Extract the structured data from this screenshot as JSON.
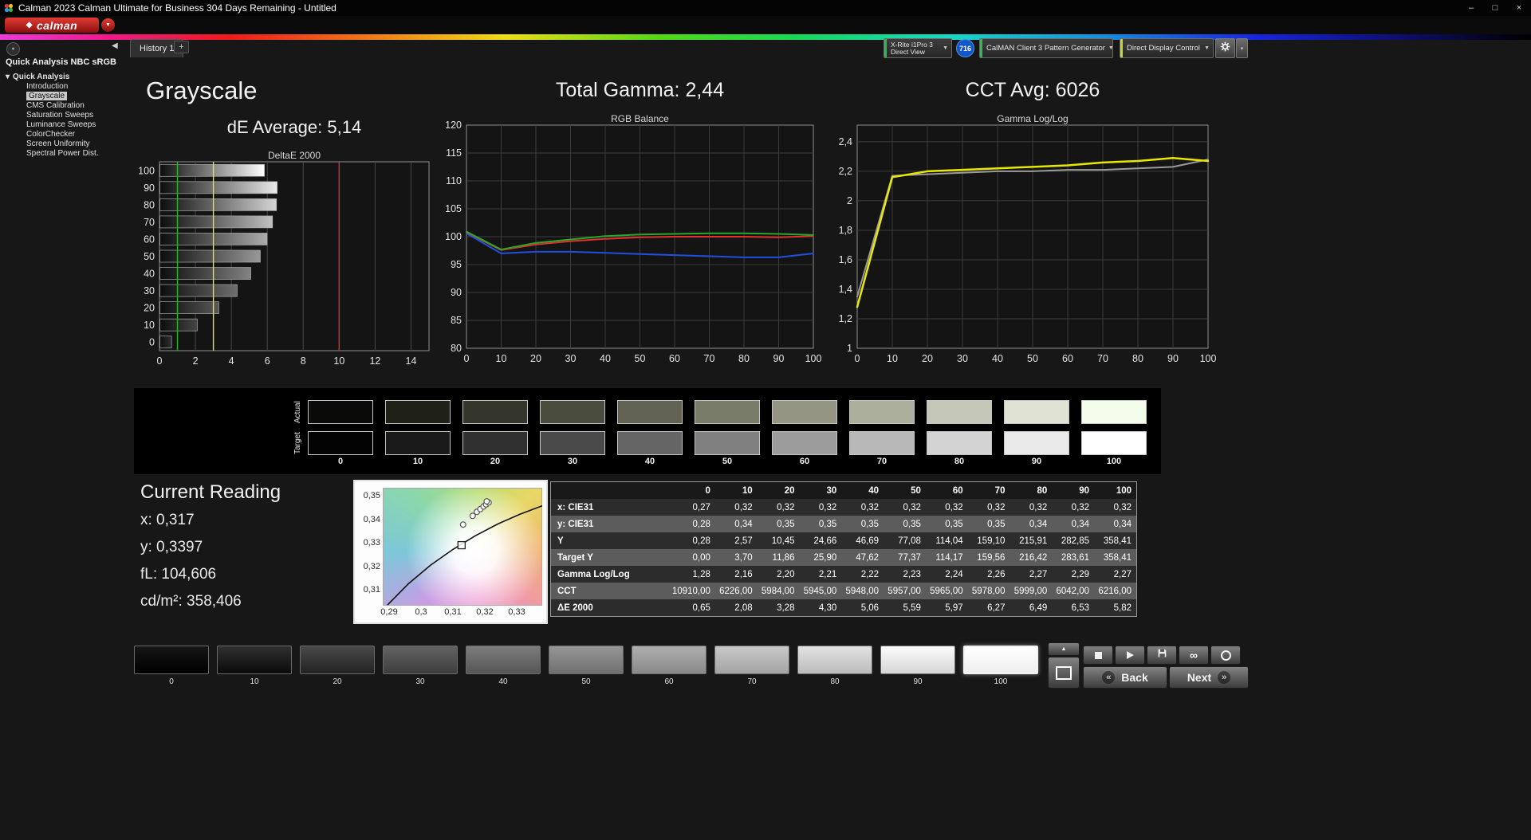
{
  "window": {
    "title": "Calman 2023 Calman Ultimate for Business 304 Days Remaining - Untitled",
    "controls": {
      "minimize": "–",
      "maximize": "□",
      "close": "×"
    }
  },
  "brand": {
    "logo_text": "calman"
  },
  "icons": {
    "dropdown_arrow": "▼",
    "collapse_left": "◀",
    "tree_collapse": "▾",
    "diamond": "◆",
    "back_chevron": "«",
    "next_chevron": "»",
    "eject": "▲",
    "infinity": "∞",
    "more": "▾"
  },
  "tabs": {
    "active": "History 1",
    "add": "+"
  },
  "devices": {
    "meter": {
      "line1": "X-Rite i1Pro 3",
      "line2": "Direct View",
      "accent": "#1fc24d"
    },
    "meter_badge": "716",
    "pattern": {
      "label": "CalMAN Client 3 Pattern Generator",
      "accent": "#1fc24d"
    },
    "display": {
      "label": "Direct Display Control",
      "accent": "#c6d62f"
    }
  },
  "sidebar": {
    "title": "Quick Analysis NBC sRGB",
    "root": "Quick Analysis",
    "items": [
      "Introduction",
      "Grayscale",
      "CMS Calibration",
      "Saturation Sweeps",
      "Luminance Sweeps",
      "ColorChecker",
      "Screen Uniformity",
      "Spectral Power Dist."
    ],
    "selected": "Grayscale"
  },
  "headings": {
    "page_title": "Grayscale",
    "de_average": "dE Average: 5,14",
    "total_gamma": "Total Gamma: 2,44",
    "cct_avg": "CCT Avg: 6026"
  },
  "chart_data": [
    {
      "name": "deltae2000",
      "type": "bar",
      "orientation": "horizontal",
      "title": "DeltaE 2000",
      "categories": [
        100,
        90,
        80,
        70,
        60,
        50,
        40,
        30,
        20,
        10,
        0
      ],
      "values": [
        5.82,
        6.53,
        6.49,
        6.27,
        5.97,
        5.59,
        5.06,
        4.3,
        3.28,
        2.08,
        0.65
      ],
      "xlim": [
        0,
        15
      ],
      "x_ticks": [
        0,
        2,
        4,
        6,
        8,
        10,
        12,
        14
      ],
      "reference_lines": [
        {
          "x": 1,
          "color": "#2ab52a"
        },
        {
          "x": 3,
          "color": "#e6e62a"
        },
        {
          "x": 10,
          "color": "#e62a2a"
        }
      ]
    },
    {
      "name": "rgb_balance",
      "type": "line",
      "title": "RGB Balance",
      "x": [
        0,
        10,
        20,
        30,
        40,
        50,
        60,
        70,
        80,
        90,
        100
      ],
      "ylim": [
        80,
        120
      ],
      "y_ticks": [
        120,
        115,
        110,
        105,
        100,
        95,
        90,
        85,
        80
      ],
      "series": [
        {
          "name": "Blue",
          "color": "#2050e0",
          "width": 2,
          "values": [
            100.6,
            97.0,
            97.3,
            97.3,
            97.1,
            96.9,
            96.7,
            96.5,
            96.3,
            96.3,
            97.0
          ]
        },
        {
          "name": "Red",
          "color": "#e03030",
          "width": 2,
          "values": [
            100.8,
            97.6,
            98.6,
            99.2,
            99.6,
            99.9,
            100.0,
            100.0,
            100.0,
            99.9,
            100.1
          ]
        },
        {
          "name": "Green",
          "color": "#28a828",
          "width": 2,
          "values": [
            100.9,
            97.7,
            98.9,
            99.5,
            100.1,
            100.4,
            100.5,
            100.6,
            100.6,
            100.5,
            100.3
          ]
        }
      ]
    },
    {
      "name": "gamma_loglog",
      "type": "line",
      "title": "Gamma Log/Log",
      "x": [
        0,
        10,
        20,
        30,
        40,
        50,
        60,
        70,
        80,
        90,
        100
      ],
      "ylim": [
        1,
        2.513
      ],
      "y_ticks": [
        2.4,
        2.2,
        2,
        1.8,
        1.6,
        1.4,
        1.2,
        1
      ],
      "y_tick_labels": [
        "2,4",
        "2,2",
        "2",
        "1,8",
        "1,6",
        "1,4",
        "1,2",
        "1"
      ],
      "series": [
        {
          "name": "Target",
          "color": "#9a9a9a",
          "width": 2,
          "values": [
            1.35,
            2.17,
            2.18,
            2.19,
            2.2,
            2.2,
            2.21,
            2.21,
            2.22,
            2.23,
            2.28
          ]
        },
        {
          "name": "Measured",
          "color": "#e8e800",
          "width": 2.5,
          "values": [
            1.28,
            2.16,
            2.2,
            2.21,
            2.22,
            2.23,
            2.24,
            2.26,
            2.27,
            2.29,
            2.27
          ]
        }
      ]
    },
    {
      "name": "cie_chromaticity",
      "type": "scatter",
      "xlim": [
        0.288,
        0.338
      ],
      "ylim": [
        0.3032,
        0.3535
      ],
      "x_ticks": [
        "0,29",
        "0,3",
        "0,31",
        "0,32",
        "0,33"
      ],
      "x_tick_values": [
        0.29,
        0.3,
        0.31,
        0.32,
        0.33
      ],
      "y_ticks": [
        "0,35",
        "0,34",
        "0,33",
        "0,32",
        "0,31"
      ],
      "y_tick_values": [
        0.35,
        0.34,
        0.33,
        0.32,
        0.31
      ],
      "target_square": [
        0.3127,
        0.329
      ],
      "points": [
        [
          0.3132,
          0.3378
        ],
        [
          0.3162,
          0.3415
        ],
        [
          0.3175,
          0.3432
        ],
        [
          0.3186,
          0.3444
        ],
        [
          0.3196,
          0.3455
        ],
        [
          0.3204,
          0.3464
        ],
        [
          0.3212,
          0.3472
        ],
        [
          0.3206,
          0.3477
        ]
      ],
      "locus": [
        [
          0.2895,
          0.3035
        ],
        [
          0.296,
          0.3125
        ],
        [
          0.303,
          0.3205
        ],
        [
          0.31,
          0.3272
        ],
        [
          0.317,
          0.333
        ],
        [
          0.324,
          0.338
        ],
        [
          0.331,
          0.3422
        ],
        [
          0.338,
          0.3458
        ]
      ]
    }
  ],
  "grayscale_strip": {
    "row_labels": [
      "Actual",
      "Target"
    ],
    "levels": [
      "0",
      "10",
      "20",
      "30",
      "40",
      "50",
      "60",
      "70",
      "80",
      "90",
      "100"
    ],
    "actual_colors": [
      "#0a0a08",
      "#1f2018",
      "#34362b",
      "#4a4c3e",
      "#616253",
      "#7a7c6a",
      "#949683",
      "#adaf9d",
      "#c6c8b7",
      "#e0e2d3",
      "#f4fcea"
    ],
    "target_colors": [
      "#030303",
      "#1a1a1a",
      "#303030",
      "#4a4a4a",
      "#656565",
      "#808080",
      "#9c9c9c",
      "#b8b8b8",
      "#d3d3d3",
      "#eaeaea",
      "#ffffff"
    ]
  },
  "current_reading": {
    "title": "Current Reading",
    "lines": [
      "x: 0,317",
      "y: 0,3397",
      "fL: 104,606",
      "cd/m²: 358,406"
    ]
  },
  "table": {
    "columns": [
      "0",
      "10",
      "20",
      "30",
      "40",
      "50",
      "60",
      "70",
      "80",
      "90",
      "100"
    ],
    "rows": [
      {
        "label": "x: CIE31",
        "values": [
          "0,27",
          "0,32",
          "0,32",
          "0,32",
          "0,32",
          "0,32",
          "0,32",
          "0,32",
          "0,32",
          "0,32",
          "0,32"
        ]
      },
      {
        "label": "y: CIE31",
        "values": [
          "0,28",
          "0,34",
          "0,35",
          "0,35",
          "0,35",
          "0,35",
          "0,35",
          "0,35",
          "0,34",
          "0,34",
          "0,34"
        ]
      },
      {
        "label": "Y",
        "values": [
          "0,28",
          "2,57",
          "10,45",
          "24,66",
          "46,69",
          "77,08",
          "114,04",
          "159,10",
          "215,91",
          "282,85",
          "358,41"
        ]
      },
      {
        "label": "Target Y",
        "values": [
          "0,00",
          "3,70",
          "11,86",
          "25,90",
          "47,62",
          "77,37",
          "114,17",
          "159,56",
          "216,42",
          "283,61",
          "358,41"
        ]
      },
      {
        "label": "Gamma Log/Log",
        "values": [
          "1,28",
          "2,16",
          "2,20",
          "2,21",
          "2,22",
          "2,23",
          "2,24",
          "2,26",
          "2,27",
          "2,29",
          "2,27"
        ]
      },
      {
        "label": "CCT",
        "values": [
          "10910,00",
          "6226,00",
          "5984,00",
          "5945,00",
          "5948,00",
          "5957,00",
          "5965,00",
          "5978,00",
          "5999,00",
          "6042,00",
          "6216,00"
        ]
      },
      {
        "label": "ΔE 2000",
        "values": [
          "0,65",
          "2,08",
          "3,28",
          "4,30",
          "5,06",
          "5,59",
          "5,97",
          "6,27",
          "6,49",
          "6,53",
          "5,82"
        ]
      }
    ]
  },
  "pattern_bar": {
    "levels": [
      "0",
      "10",
      "20",
      "30",
      "40",
      "50",
      "60",
      "70",
      "80",
      "90",
      "100"
    ],
    "selected": "100",
    "buttons": {
      "back": "Back",
      "next": "Next"
    }
  }
}
